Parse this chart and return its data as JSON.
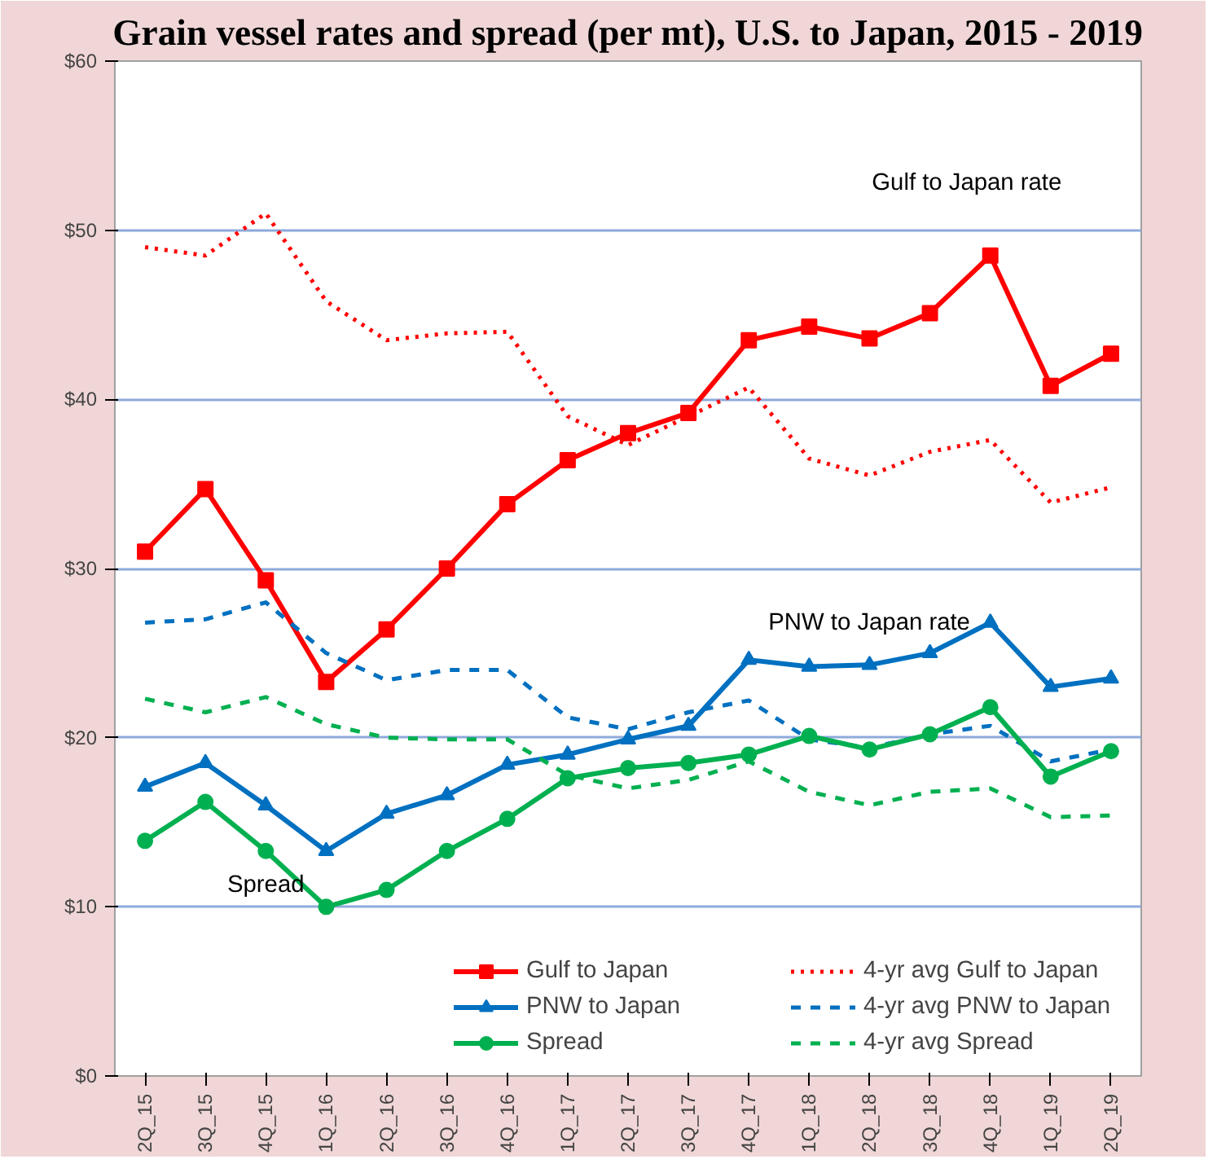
{
  "chart_data": {
    "type": "line",
    "title": "Grain vessel rates and spread (per mt), U.S. to Japan, 2015 - 2019",
    "categories": [
      "2Q_15",
      "3Q_15",
      "4Q_15",
      "1Q_16",
      "2Q_16",
      "3Q_16",
      "4Q_16",
      "1Q_17",
      "2Q_17",
      "3Q_17",
      "4Q_17",
      "1Q_18",
      "2Q_18",
      "3Q_18",
      "4Q_18",
      "1Q_19",
      "2Q_19"
    ],
    "series": [
      {
        "name": "Gulf to Japan",
        "color": "#ff0000",
        "marker": "square",
        "line_style": "solid",
        "values": [
          31.0,
          34.7,
          29.3,
          23.3,
          26.4,
          30.0,
          33.8,
          36.4,
          38.0,
          39.2,
          43.5,
          44.3,
          43.6,
          45.1,
          48.5,
          40.8,
          42.7
        ]
      },
      {
        "name": "4-yr avg Gulf to Japan",
        "color": "#ff0000",
        "marker": "none",
        "line_style": "dotted",
        "values": [
          49.0,
          48.5,
          51.0,
          45.8,
          43.5,
          43.9,
          44.0,
          39.0,
          37.3,
          39.0,
          40.7,
          36.5,
          35.5,
          36.9,
          37.6,
          33.9,
          34.8
        ]
      },
      {
        "name": "PNW to Japan",
        "color": "#0070c0",
        "marker": "triangle",
        "line_style": "solid",
        "values": [
          17.1,
          18.5,
          16.0,
          13.3,
          15.5,
          16.6,
          18.4,
          19.0,
          19.9,
          20.7,
          24.6,
          24.2,
          24.3,
          25.0,
          26.8,
          23.0,
          23.5
        ]
      },
      {
        "name": "4-yr avg PNW to Japan",
        "color": "#0070c0",
        "marker": "none",
        "line_style": "dashed",
        "values": [
          26.8,
          27.0,
          28.0,
          25.0,
          23.4,
          24.0,
          24.0,
          21.2,
          20.5,
          21.5,
          22.2,
          19.9,
          19.4,
          20.2,
          20.7,
          18.6,
          19.3
        ]
      },
      {
        "name": "Spread",
        "color": "#00b050",
        "marker": "circle",
        "line_style": "solid",
        "values": [
          13.9,
          16.2,
          13.3,
          10.0,
          11.0,
          13.3,
          15.2,
          17.6,
          18.2,
          18.5,
          19.0,
          20.1,
          19.3,
          20.2,
          21.8,
          17.7,
          19.2
        ]
      },
      {
        "name": "4-yr avg Spread",
        "color": "#00b050",
        "marker": "none",
        "line_style": "dashed",
        "values": [
          22.3,
          21.5,
          22.4,
          20.8,
          20.0,
          19.9,
          19.9,
          17.8,
          17.0,
          17.5,
          18.6,
          16.8,
          16.0,
          16.8,
          17.0,
          15.3,
          15.4
        ]
      }
    ],
    "ylim": [
      0,
      60
    ],
    "yticks": [
      {
        "value": 0,
        "label": "$0"
      },
      {
        "value": 10,
        "label": "$10"
      },
      {
        "value": 20,
        "label": "$20"
      },
      {
        "value": 30,
        "label": "$30"
      },
      {
        "value": 40,
        "label": "$40"
      },
      {
        "value": 50,
        "label": "$50"
      },
      {
        "value": 60,
        "label": "$60"
      }
    ],
    "grid": "y",
    "legend": "bottom right",
    "annotations": [
      "Gulf to Japan rate",
      "PNW to Japan rate",
      "Spread"
    ]
  }
}
